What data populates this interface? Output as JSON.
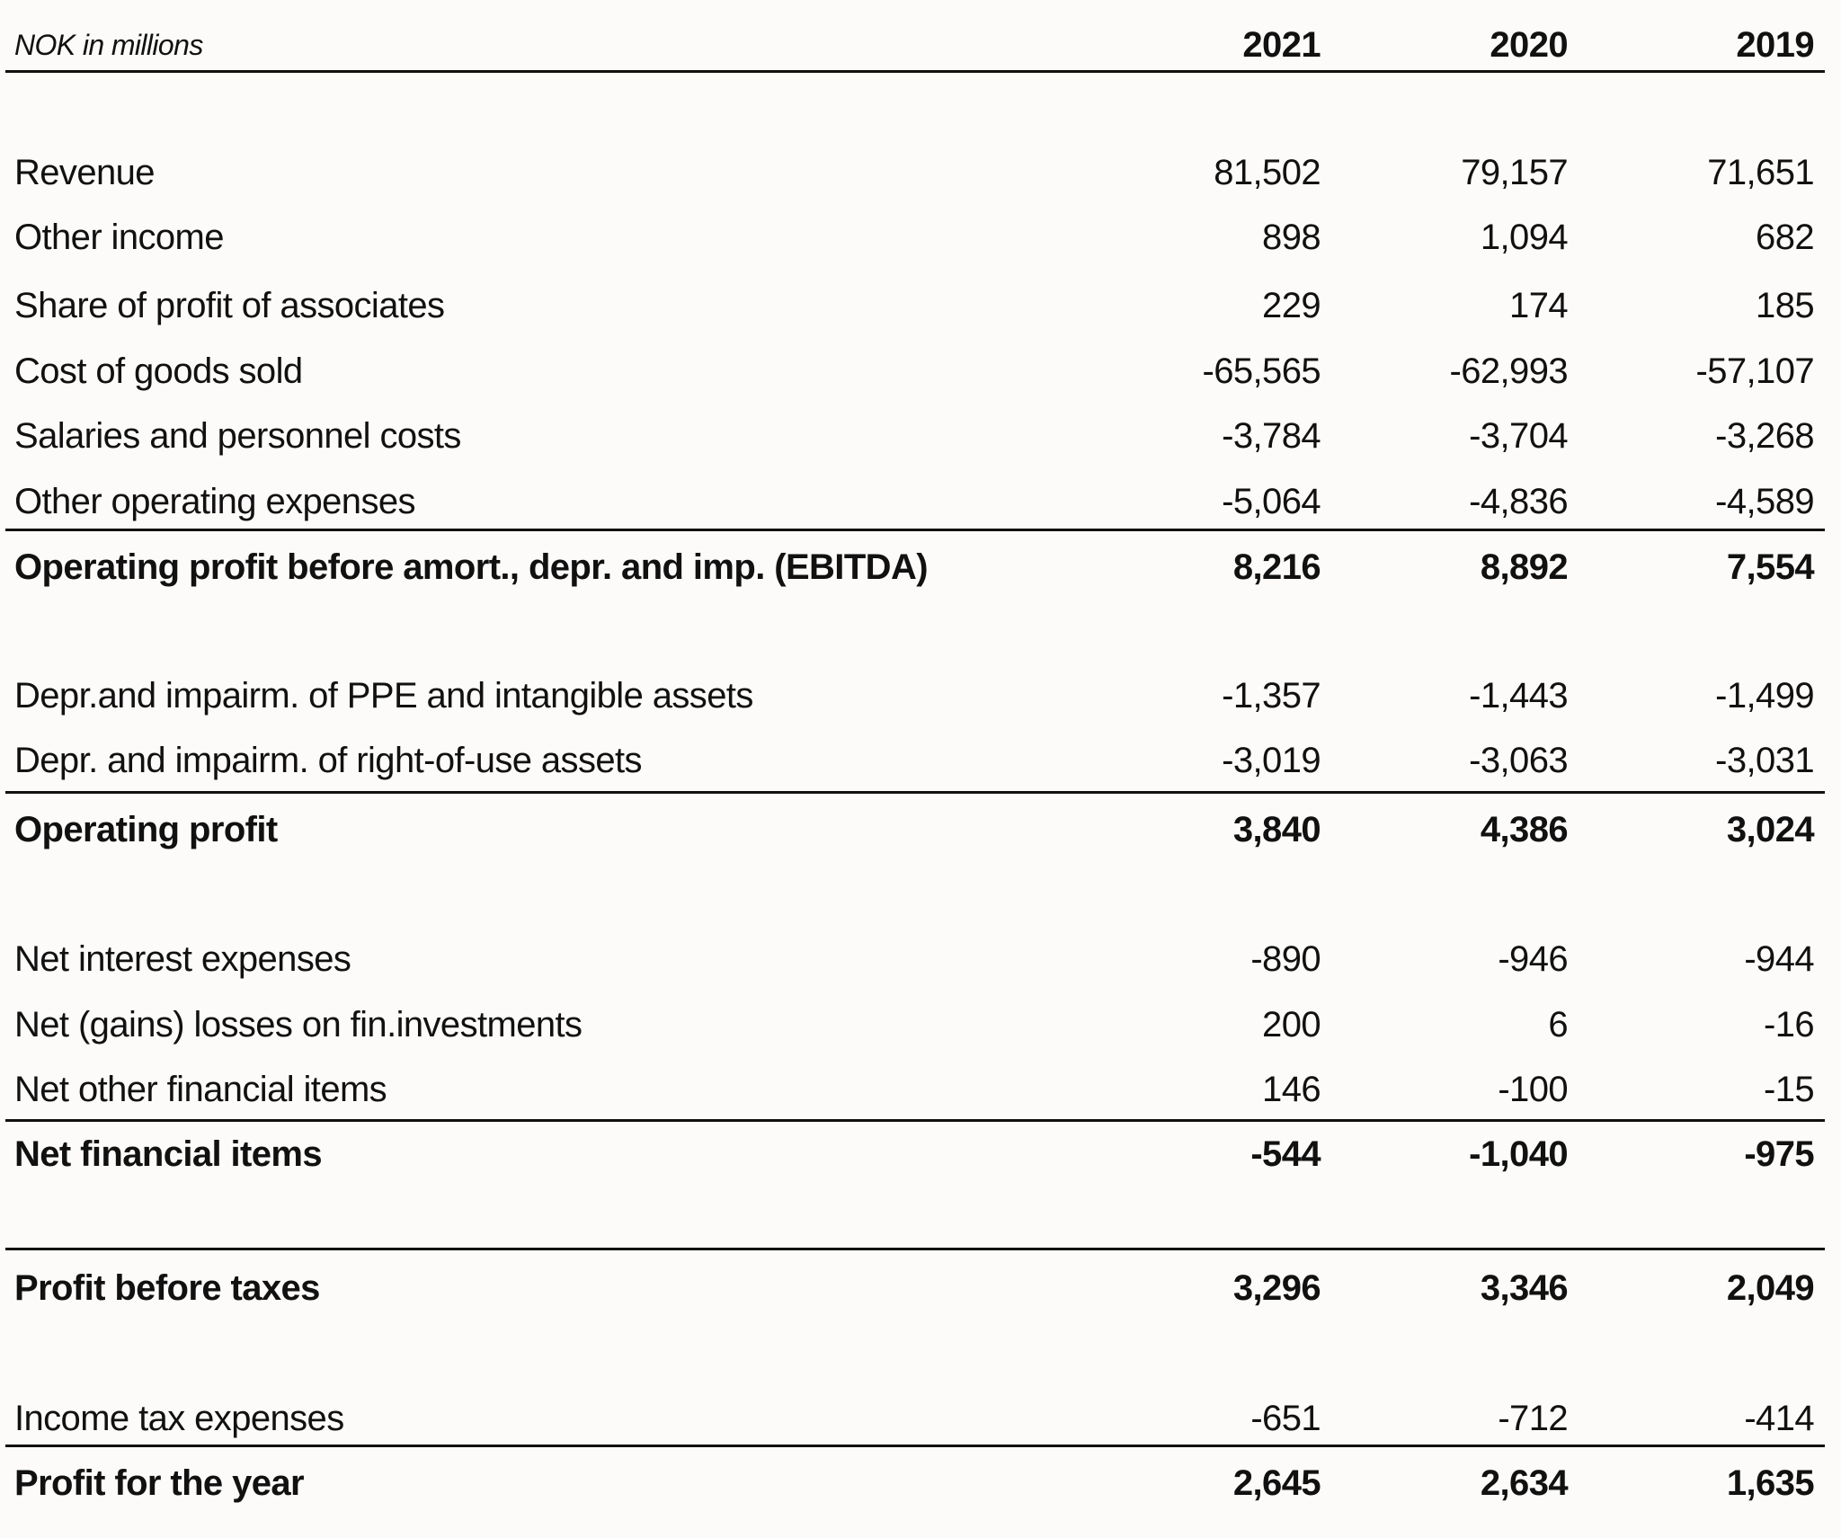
{
  "header": {
    "unit_label": "NOK in millions",
    "columns": [
      "2021",
      "2020",
      "2019"
    ]
  },
  "rows": [
    {
      "label": "Revenue",
      "values": [
        "81,502",
        "79,157",
        "71,651"
      ]
    },
    {
      "label": "Other income",
      "values": [
        "898",
        "1,094",
        "682"
      ]
    },
    {
      "label": "Share of profit of associates",
      "values": [
        "229",
        "174",
        "185"
      ]
    },
    {
      "label": "Cost of goods sold",
      "values": [
        "-65,565",
        "-62,993",
        "-57,107"
      ]
    },
    {
      "label": "Salaries and personnel costs",
      "values": [
        "-3,784",
        "-3,704",
        "-3,268"
      ]
    },
    {
      "label": "Other operating expenses",
      "values": [
        "-5,064",
        "-4,836",
        "-4,589"
      ]
    },
    {
      "label": "Operating profit before amort., depr. and imp. (EBITDA)",
      "values": [
        "8,216",
        "8,892",
        "7,554"
      ]
    },
    {
      "label": "Depr.and impairm. of PPE and intangible assets",
      "values": [
        "-1,357",
        "-1,443",
        "-1,499"
      ]
    },
    {
      "label": "Depr. and impairm. of right-of-use assets",
      "values": [
        "-3,019",
        "-3,063",
        "-3,031"
      ]
    },
    {
      "label": "Operating profit",
      "values": [
        "3,840",
        "4,386",
        "3,024"
      ]
    },
    {
      "label": "Net interest expenses",
      "values": [
        "-890",
        "-946",
        "-944"
      ]
    },
    {
      "label": "Net (gains) losses on fin.investments",
      "values": [
        "200",
        "6",
        "-16"
      ]
    },
    {
      "label": "Net other financial items",
      "values": [
        "146",
        "-100",
        "-15"
      ]
    },
    {
      "label": "Net financial items",
      "values": [
        "-544",
        "-1,040",
        "-975"
      ]
    },
    {
      "label": "Profit before taxes",
      "values": [
        "3,296",
        "3,346",
        "2,049"
      ]
    },
    {
      "label": "Income tax expenses",
      "values": [
        "-651",
        "-712",
        "-414"
      ]
    },
    {
      "label": "Profit for the year",
      "values": [
        "2,645",
        "2,634",
        "1,635"
      ]
    }
  ]
}
